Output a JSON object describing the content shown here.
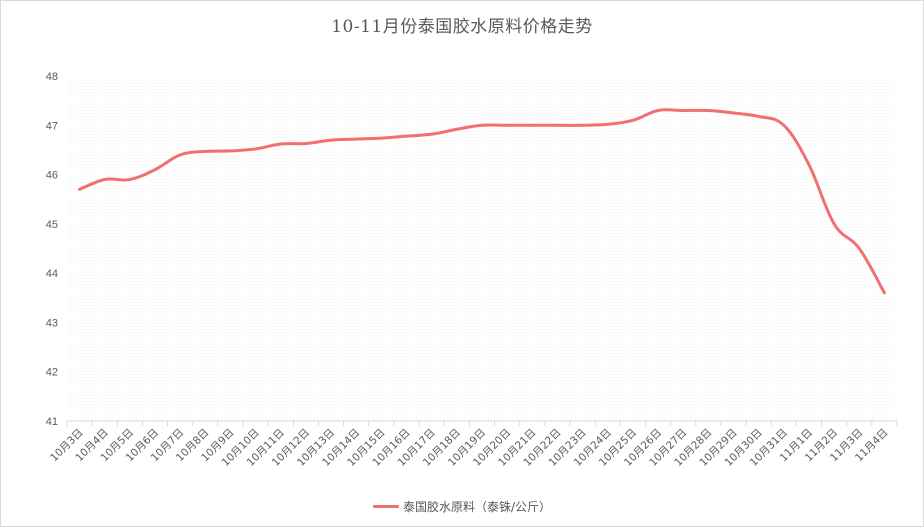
{
  "chart_data": {
    "type": "line",
    "title": "10-11月份泰国胶水原料价格走势",
    "xlabel": "",
    "ylabel": "",
    "ylim": [
      41,
      48
    ],
    "yticks": [
      41,
      42,
      43,
      44,
      45,
      46,
      47,
      48
    ],
    "grid": false,
    "legend_position": "bottom",
    "categories": [
      "10月3日",
      "10月4日",
      "10月5日",
      "10月6日",
      "10月7日",
      "10月8日",
      "10月9日",
      "10月10日",
      "10月11日",
      "10月12日",
      "10月13日",
      "10月14日",
      "10月15日",
      "10月16日",
      "10月17日",
      "10月18日",
      "10月19日",
      "10月20日",
      "10月21日",
      "10月22日",
      "10月23日",
      "10月24日",
      "10月25日",
      "10月26日",
      "10月27日",
      "10月28日",
      "10月29日",
      "10月30日",
      "10月31日",
      "11月1日",
      "11月2日",
      "11月3日",
      "11月4日"
    ],
    "series": [
      {
        "name": "泰国胶水原料（泰铢/公斤）",
        "color": "#f07070",
        "values": [
          45.7,
          45.9,
          45.9,
          46.1,
          46.4,
          46.47,
          46.48,
          46.52,
          46.62,
          46.63,
          46.7,
          46.72,
          46.74,
          46.78,
          46.82,
          46.92,
          47.0,
          47.0,
          47.0,
          47.0,
          47.0,
          47.02,
          47.1,
          47.3,
          47.3,
          47.3,
          47.25,
          47.18,
          47.0,
          46.2,
          45.0,
          44.5,
          43.6
        ]
      }
    ]
  },
  "colors": {
    "axis": "#d9d9d9",
    "text": "#595959",
    "line": "#f07070"
  }
}
